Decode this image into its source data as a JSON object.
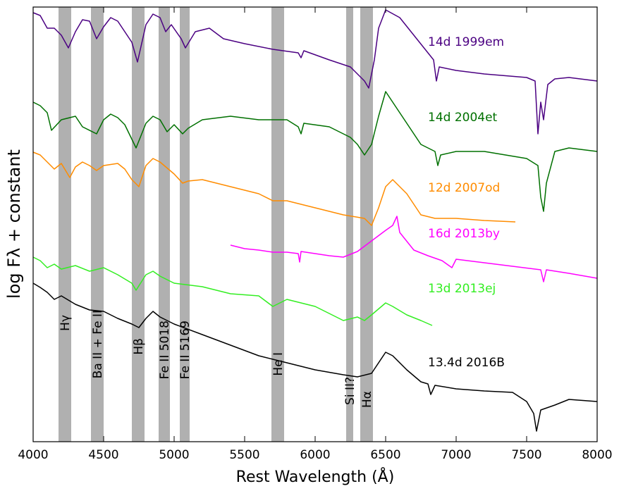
{
  "chart_data": {
    "type": "line",
    "xlabel": "Rest Wavelength (Å)",
    "ylabel": "log Fλ + constant",
    "xlim": [
      4000,
      8000
    ],
    "xticks": [
      4000,
      4500,
      5000,
      5500,
      6000,
      6500,
      7000,
      7500,
      8000
    ],
    "ylim": [
      0,
      617
    ],
    "annotations": [
      {
        "label": "Hγ",
        "x0": 4180,
        "x1": 4270
      },
      {
        "label": "Ba II + Fe II",
        "x0": 4410,
        "x1": 4500
      },
      {
        "label": "Hβ",
        "x0": 4700,
        "x1": 4790
      },
      {
        "label": "Fe II 5018",
        "x0": 4890,
        "x1": 4970
      },
      {
        "label": "Fe II 5169",
        "x0": 5040,
        "x1": 5110
      },
      {
        "label": "He I",
        "x0": 5690,
        "x1": 5780
      },
      {
        "label": "Si II?",
        "x0": 6220,
        "x1": 6270
      },
      {
        "label": "Hα",
        "x0": 6320,
        "x1": 6410
      }
    ],
    "band_color": "#b0b0b0",
    "series": [
      {
        "name": "14d 1999em",
        "color": "#4b0082",
        "x": [
          4000,
          4050,
          4100,
          4150,
          4200,
          4250,
          4300,
          4350,
          4400,
          4450,
          4500,
          4550,
          4600,
          4650,
          4700,
          4740,
          4800,
          4850,
          4900,
          4940,
          4980,
          5050,
          5080,
          5150,
          5250,
          5350,
          5500,
          5700,
          5880,
          5900,
          5920,
          6100,
          6250,
          6350,
          6380,
          6420,
          6450,
          6500,
          6600,
          6700,
          6800,
          6840,
          6860,
          6880,
          7000,
          7200,
          7500,
          7560,
          7580,
          7600,
          7620,
          7650,
          7700,
          7800,
          8000
        ],
        "values": [
          609,
          605,
          587,
          587,
          577,
          559,
          582,
          599,
          597,
          572,
          589,
          602,
          597,
          582,
          567,
          539,
          592,
          607,
          602,
          582,
          592,
          572,
          559,
          582,
          587,
          572,
          565,
          557,
          552,
          545,
          555,
          542,
          532,
          512,
          502,
          542,
          587,
          613,
          602,
          577,
          552,
          542,
          512,
          532,
          527,
          522,
          517,
          512,
          437,
          482,
          457,
          507,
          515,
          517,
          512
        ]
      },
      {
        "name": "14d 2004et",
        "color": "#007000",
        "x": [
          4000,
          4050,
          4100,
          4130,
          4200,
          4300,
          4350,
          4450,
          4500,
          4550,
          4600,
          4650,
          4730,
          4800,
          4850,
          4900,
          4950,
          5000,
          5060,
          5100,
          5200,
          5400,
          5600,
          5800,
          5880,
          5900,
          5920,
          6100,
          6250,
          6300,
          6350,
          6400,
          6450,
          6500,
          6550,
          6650,
          6750,
          6850,
          6870,
          6890,
          7000,
          7200,
          7500,
          7580,
          7600,
          7620,
          7640,
          7700,
          7800,
          8000
        ],
        "values": [
          482,
          477,
          467,
          442,
          457,
          462,
          447,
          437,
          457,
          465,
          460,
          450,
          417,
          452,
          462,
          457,
          440,
          450,
          437,
          445,
          457,
          462,
          457,
          457,
          447,
          437,
          452,
          447,
          432,
          422,
          407,
          422,
          462,
          497,
          482,
          452,
          422,
          412,
          392,
          407,
          412,
          412,
          402,
          392,
          347,
          327,
          367,
          412,
          417,
          412
        ]
      },
      {
        "name": "12d 2007od",
        "color": "#ff8c00",
        "x": [
          4000,
          4050,
          4100,
          4150,
          4200,
          4260,
          4300,
          4350,
          4400,
          4450,
          4500,
          4600,
          4650,
          4700,
          4750,
          4800,
          4850,
          4900,
          5000,
          5060,
          5100,
          5200,
          5400,
          5600,
          5700,
          5800,
          6000,
          6200,
          6350,
          6400,
          6450,
          6500,
          6550,
          6650,
          6750,
          6850,
          7000,
          7200,
          7420
        ],
        "values": [
          411,
          407,
          397,
          387,
          395,
          375,
          390,
          397,
          392,
          385,
          392,
          395,
          387,
          372,
          362,
          392,
          402,
          397,
          380,
          367,
          370,
          372,
          362,
          352,
          342,
          342,
          332,
          322,
          317,
          307,
          332,
          362,
          372,
          352,
          322,
          317,
          317,
          314,
          312
        ]
      },
      {
        "name": "16d 2013by",
        "color": "#ff00ff",
        "x": [
          5400,
          5500,
          5600,
          5700,
          5800,
          5880,
          5890,
          5900,
          6000,
          6100,
          6200,
          6300,
          6400,
          6500,
          6550,
          6580,
          6600,
          6700,
          6800,
          6900,
          6970,
          7000,
          7200,
          7400,
          7600,
          7620,
          7640,
          7800,
          8000
        ],
        "values": [
          279,
          274,
          272,
          269,
          269,
          267,
          255,
          270,
          267,
          264,
          262,
          270,
          285,
          300,
          307,
          320,
          297,
          272,
          264,
          257,
          247,
          259,
          254,
          249,
          244,
          227,
          244,
          239,
          232
        ]
      },
      {
        "name": "13d 2013ej",
        "color": "#33ee22",
        "x": [
          4000,
          4050,
          4100,
          4150,
          4200,
          4300,
          4400,
          4500,
          4600,
          4700,
          4730,
          4800,
          4850,
          4900,
          5000,
          5200,
          5400,
          5600,
          5700,
          5800,
          6000,
          6200,
          6300,
          6350,
          6400,
          6500,
          6550,
          6650,
          6750,
          6830
        ],
        "values": [
          262,
          257,
          247,
          252,
          245,
          250,
          242,
          247,
          237,
          225,
          215,
          237,
          242,
          235,
          225,
          220,
          210,
          207,
          192,
          202,
          192,
          172,
          177,
          172,
          180,
          197,
          192,
          180,
          172,
          165
        ]
      },
      {
        "name": "13.4d 2016B",
        "color": "#000000",
        "x": [
          4000,
          4050,
          4100,
          4150,
          4200,
          4300,
          4400,
          4500,
          4600,
          4700,
          4750,
          4800,
          4850,
          4900,
          5000,
          5200,
          5400,
          5600,
          5700,
          5800,
          6000,
          6200,
          6300,
          6400,
          6500,
          6550,
          6650,
          6750,
          6800,
          6820,
          6850,
          7000,
          7200,
          7400,
          7500,
          7550,
          7570,
          7600,
          7700,
          7800,
          8000
        ],
        "values": [
          225,
          219,
          212,
          202,
          207,
          195,
          187,
          185,
          175,
          167,
          162,
          175,
          185,
          177,
          167,
          152,
          137,
          122,
          117,
          112,
          102,
          95,
          92,
          97,
          127,
          122,
          102,
          85,
          82,
          67,
          80,
          75,
          72,
          70,
          57,
          40,
          15,
          45,
          52,
          60,
          57
        ]
      }
    ]
  }
}
